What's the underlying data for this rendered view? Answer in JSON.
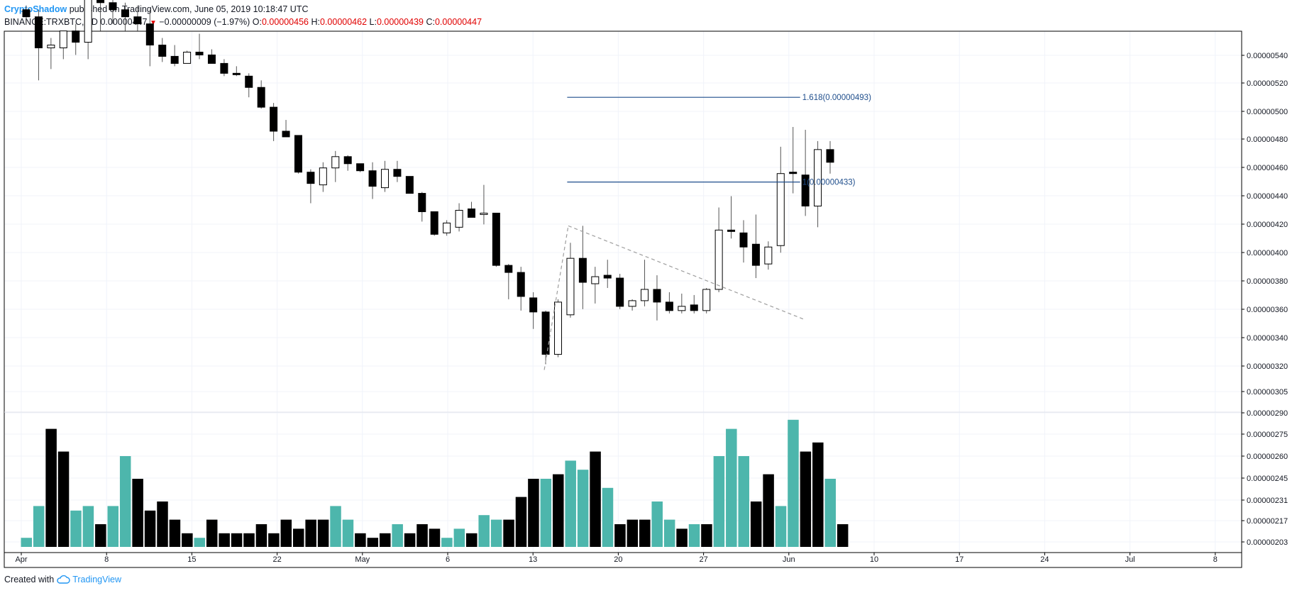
{
  "header": {
    "author": "CryptoShadow",
    "published_text": "published on TradingView.com, June 05, 2019 10:18:47 UTC",
    "symbol_interval": "BINANCE:TRXBTC, 1D",
    "last_price": "0.00000447",
    "change": "−0.00000009 (−1.97%)",
    "o_label": "O:",
    "o_value": "0.00000456",
    "h_label": "H:",
    "h_value": "0.00000462",
    "l_label": "L:",
    "l_value": "0.00000439",
    "c_label": "C:",
    "c_value": "0.00000447"
  },
  "footer": {
    "created_with": "Created with",
    "brand": "TradingView",
    "brand_icon": "tradingview-cloud-icon"
  },
  "colors": {
    "down_candle": "#000000",
    "up_candle_fill": "#ffffff",
    "wick": "#555555",
    "volume_up": "#4db6ac",
    "volume_down": "#000000",
    "fib_line": "#1f4e8c",
    "fib_text": "#1f4e8c",
    "trend_line": "#9e9e9e",
    "grid": "#f0f3fa",
    "axis_text": "#131722",
    "red": "#e00000"
  },
  "chart_data": {
    "type": "candlestick",
    "symbol": "BINANCE:TRXBTC",
    "interval": "1D",
    "price_axis_ticks": [
      "0.00000540",
      "0.00000520",
      "0.00000500",
      "0.00000480",
      "0.00000460",
      "0.00000440",
      "0.00000420",
      "0.00000400",
      "0.00000380",
      "0.00000360",
      "0.00000340",
      "0.00000320",
      "0.00000305",
      "0.00000290",
      "0.00000275",
      "0.00000260",
      "0.00000245",
      "0.00000231",
      "0.00000217",
      "0.00000203"
    ],
    "time_axis_ticks": [
      "Apr",
      "8",
      "15",
      "22",
      "May",
      "6",
      "13",
      "20",
      "27",
      "Jun",
      "10",
      "17",
      "24",
      "Jul",
      "8"
    ],
    "fib_levels": [
      {
        "level": "1.618",
        "price": "0.00000493",
        "label": "1.618(0.00000493)"
      },
      {
        "level": "1",
        "price": "0.00000433",
        "label": "1(0.00000433)"
      }
    ],
    "candles": [
      {
        "o": 555,
        "h": 558,
        "l": 545,
        "c": 550
      },
      {
        "o": 550,
        "h": 555,
        "l": 505,
        "c": 528
      },
      {
        "o": 528,
        "h": 535,
        "l": 513,
        "c": 530
      },
      {
        "o": 528,
        "h": 540,
        "l": 520,
        "c": 540
      },
      {
        "o": 540,
        "h": 545,
        "l": 523,
        "c": 532
      },
      {
        "o": 532,
        "h": 570,
        "l": 520,
        "c": 565
      },
      {
        "o": 565,
        "h": 575,
        "l": 540,
        "c": 560
      },
      {
        "o": 560,
        "h": 565,
        "l": 545,
        "c": 555
      },
      {
        "o": 555,
        "h": 560,
        "l": 540,
        "c": 550
      },
      {
        "o": 550,
        "h": 558,
        "l": 540,
        "c": 545
      },
      {
        "o": 545,
        "h": 555,
        "l": 515,
        "c": 530
      },
      {
        "o": 530,
        "h": 535,
        "l": 518,
        "c": 522
      },
      {
        "o": 522,
        "h": 530,
        "l": 515,
        "c": 517
      },
      {
        "o": 517,
        "h": 526,
        "l": 517,
        "c": 525
      },
      {
        "o": 525,
        "h": 538,
        "l": 520,
        "c": 523
      },
      {
        "o": 523,
        "h": 527,
        "l": 517,
        "c": 517
      },
      {
        "o": 517,
        "h": 520,
        "l": 508,
        "c": 510
      },
      {
        "o": 510,
        "h": 515,
        "l": 508,
        "c": 509
      },
      {
        "o": 508,
        "h": 510,
        "l": 493,
        "c": 500
      },
      {
        "o": 500,
        "h": 505,
        "l": 485,
        "c": 486
      },
      {
        "o": 486,
        "h": 489,
        "l": 462,
        "c": 469
      },
      {
        "o": 469,
        "h": 477,
        "l": 465,
        "c": 465
      },
      {
        "o": 466,
        "h": 466,
        "l": 439,
        "c": 440
      },
      {
        "o": 440,
        "h": 442,
        "l": 418,
        "c": 432
      },
      {
        "o": 431,
        "h": 447,
        "l": 426,
        "c": 443
      },
      {
        "o": 443,
        "h": 455,
        "l": 433,
        "c": 451
      },
      {
        "o": 451,
        "h": 452,
        "l": 441,
        "c": 446
      },
      {
        "o": 446,
        "h": 446,
        "l": 440,
        "c": 441
      },
      {
        "o": 441,
        "h": 447,
        "l": 421,
        "c": 430
      },
      {
        "o": 429,
        "h": 448,
        "l": 426,
        "c": 442
      },
      {
        "o": 442,
        "h": 448,
        "l": 433,
        "c": 437
      },
      {
        "o": 437,
        "h": 437,
        "l": 425,
        "c": 425
      },
      {
        "o": 425,
        "h": 426,
        "l": 405,
        "c": 412
      },
      {
        "o": 412,
        "h": 412,
        "l": 395,
        "c": 396
      },
      {
        "o": 397,
        "h": 406,
        "l": 395,
        "c": 404
      },
      {
        "o": 401,
        "h": 418,
        "l": 398,
        "c": 413
      },
      {
        "o": 414,
        "h": 419,
        "l": 408,
        "c": 408
      },
      {
        "o": 410,
        "h": 431,
        "l": 403,
        "c": 411
      },
      {
        "o": 411,
        "h": 411,
        "l": 373,
        "c": 374
      },
      {
        "o": 374,
        "h": 375,
        "l": 350,
        "c": 369
      },
      {
        "o": 369,
        "h": 373,
        "l": 342,
        "c": 352
      },
      {
        "o": 351,
        "h": 355,
        "l": 329,
        "c": 341
      },
      {
        "o": 341,
        "h": 342,
        "l": 304,
        "c": 311
      },
      {
        "o": 311,
        "h": 350,
        "l": 309,
        "c": 348
      },
      {
        "o": 339,
        "h": 390,
        "l": 337,
        "c": 379
      },
      {
        "o": 379,
        "h": 402,
        "l": 343,
        "c": 362
      },
      {
        "o": 361,
        "h": 373,
        "l": 347,
        "c": 366
      },
      {
        "o": 367,
        "h": 378,
        "l": 358,
        "c": 365
      },
      {
        "o": 365,
        "h": 368,
        "l": 343,
        "c": 345
      },
      {
        "o": 345,
        "h": 350,
        "l": 342,
        "c": 349
      },
      {
        "o": 349,
        "h": 378,
        "l": 345,
        "c": 357
      },
      {
        "o": 357,
        "h": 367,
        "l": 335,
        "c": 348
      },
      {
        "o": 348,
        "h": 355,
        "l": 340,
        "c": 342
      },
      {
        "o": 342,
        "h": 354,
        "l": 340,
        "c": 345
      },
      {
        "o": 346,
        "h": 353,
        "l": 340,
        "c": 342
      },
      {
        "o": 342,
        "h": 358,
        "l": 340,
        "c": 357
      },
      {
        "o": 357,
        "h": 415,
        "l": 355,
        "c": 399
      },
      {
        "o": 399,
        "h": 423,
        "l": 393,
        "c": 398
      },
      {
        "o": 397,
        "h": 406,
        "l": 376,
        "c": 387
      },
      {
        "o": 389,
        "h": 410,
        "l": 365,
        "c": 374
      },
      {
        "o": 375,
        "h": 391,
        "l": 371,
        "c": 387
      },
      {
        "o": 388,
        "h": 458,
        "l": 383,
        "c": 439
      },
      {
        "o": 440,
        "h": 472,
        "l": 425,
        "c": 439
      },
      {
        "o": 438,
        "h": 470,
        "l": 409,
        "c": 416
      },
      {
        "o": 416,
        "h": 462,
        "l": 401,
        "c": 456
      },
      {
        "o": 456,
        "h": 462,
        "l": 439,
        "c": 447
      }
    ],
    "volume": [
      {
        "v": 2,
        "up": true
      },
      {
        "v": 9,
        "up": true
      },
      {
        "v": 26,
        "up": false
      },
      {
        "v": 21,
        "up": false
      },
      {
        "v": 8,
        "up": true
      },
      {
        "v": 9,
        "up": true
      },
      {
        "v": 5,
        "up": false
      },
      {
        "v": 9,
        "up": true
      },
      {
        "v": 20,
        "up": true
      },
      {
        "v": 15,
        "up": false
      },
      {
        "v": 8,
        "up": false
      },
      {
        "v": 10,
        "up": false
      },
      {
        "v": 6,
        "up": false
      },
      {
        "v": 3,
        "up": false
      },
      {
        "v": 2,
        "up": true
      },
      {
        "v": 6,
        "up": false
      },
      {
        "v": 3,
        "up": false
      },
      {
        "v": 3,
        "up": false
      },
      {
        "v": 3,
        "up": false
      },
      {
        "v": 5,
        "up": false
      },
      {
        "v": 3,
        "up": false
      },
      {
        "v": 6,
        "up": false
      },
      {
        "v": 4,
        "up": false
      },
      {
        "v": 6,
        "up": false
      },
      {
        "v": 6,
        "up": false
      },
      {
        "v": 9,
        "up": true
      },
      {
        "v": 6,
        "up": true
      },
      {
        "v": 3,
        "up": false
      },
      {
        "v": 2,
        "up": false
      },
      {
        "v": 3,
        "up": false
      },
      {
        "v": 5,
        "up": true
      },
      {
        "v": 3,
        "up": false
      },
      {
        "v": 5,
        "up": false
      },
      {
        "v": 4,
        "up": false
      },
      {
        "v": 2,
        "up": true
      },
      {
        "v": 4,
        "up": true
      },
      {
        "v": 3,
        "up": false
      },
      {
        "v": 7,
        "up": true
      },
      {
        "v": 6,
        "up": true
      },
      {
        "v": 6,
        "up": false
      },
      {
        "v": 11,
        "up": false
      },
      {
        "v": 15,
        "up": false
      },
      {
        "v": 15,
        "up": true
      },
      {
        "v": 16,
        "up": false
      },
      {
        "v": 19,
        "up": true
      },
      {
        "v": 17,
        "up": true
      },
      {
        "v": 21,
        "up": false
      },
      {
        "v": 13,
        "up": true
      },
      {
        "v": 5,
        "up": false
      },
      {
        "v": 6,
        "up": false
      },
      {
        "v": 6,
        "up": false
      },
      {
        "v": 10,
        "up": true
      },
      {
        "v": 6,
        "up": true
      },
      {
        "v": 4,
        "up": false
      },
      {
        "v": 5,
        "up": true
      },
      {
        "v": 5,
        "up": false
      },
      {
        "v": 20,
        "up": true
      },
      {
        "v": 26,
        "up": true
      },
      {
        "v": 20,
        "up": true
      },
      {
        "v": 10,
        "up": false
      },
      {
        "v": 16,
        "up": false
      },
      {
        "v": 9,
        "up": true
      },
      {
        "v": 28,
        "up": true
      },
      {
        "v": 21,
        "up": false
      },
      {
        "v": 23,
        "up": false
      },
      {
        "v": 15,
        "up": true
      },
      {
        "v": 5,
        "up": false
      }
    ]
  }
}
